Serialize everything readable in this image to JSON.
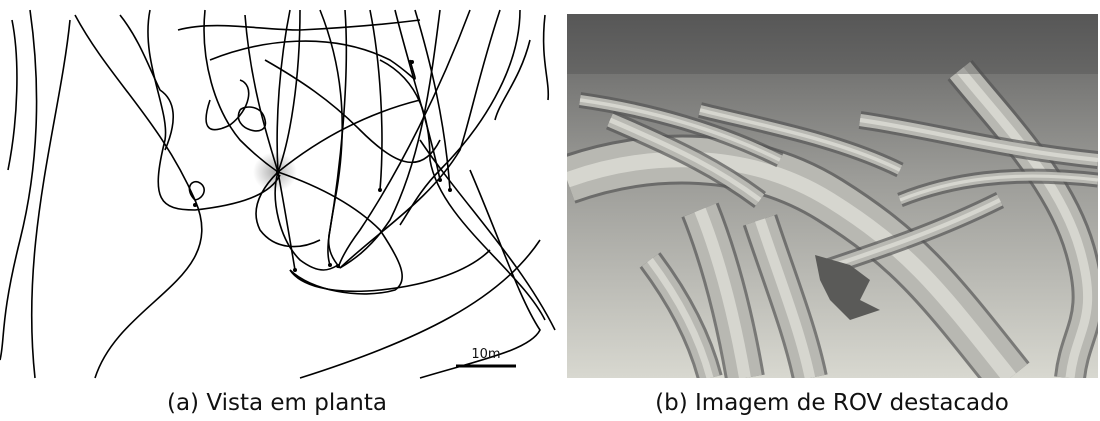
{
  "panels": [
    {
      "caption": "(a) Vista em planta",
      "scale_bar": "10m"
    },
    {
      "caption": "(b) Imagem de ROV destacado"
    }
  ]
}
